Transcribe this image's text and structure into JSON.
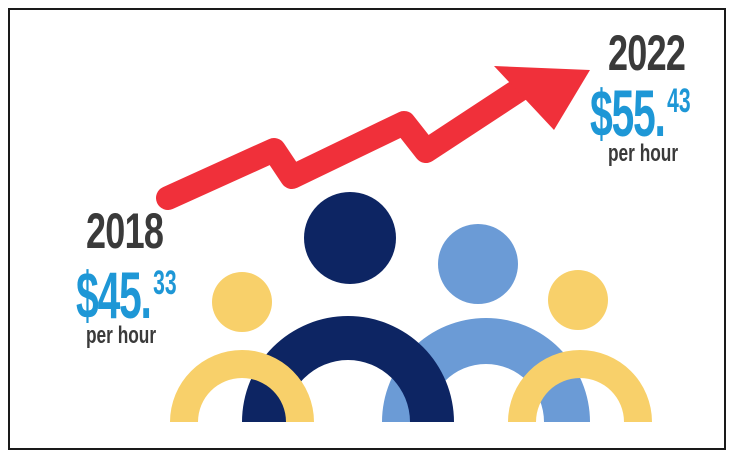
{
  "stats": {
    "start": {
      "year": "2018",
      "amount": "$45.",
      "cents": "33",
      "unit": "per hour"
    },
    "end": {
      "year": "2022",
      "amount": "$55.",
      "cents": "43",
      "unit": "per hour"
    }
  },
  "colors": {
    "arrow": "#f0303a",
    "amount_text": "#1e97d6",
    "year_text": "#3a3a3a",
    "person_navy": "#0d2563",
    "person_light_blue": "#6b9bd6",
    "person_yellow": "#f8d06a",
    "border": "#1a1a1a"
  },
  "icons": {
    "trend": "upward-zigzag-arrow-icon",
    "people": "group-of-people-icon"
  }
}
